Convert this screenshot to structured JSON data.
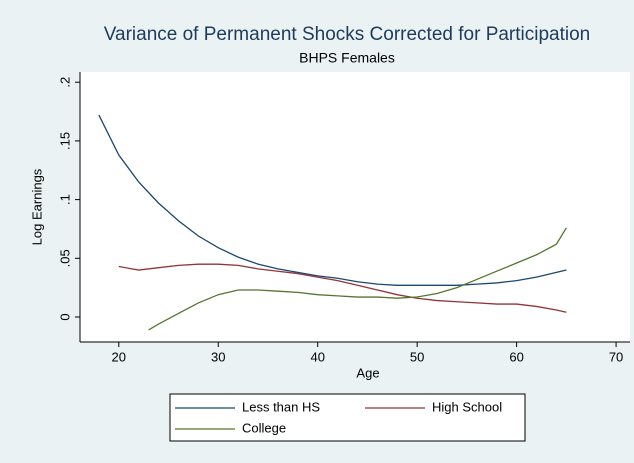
{
  "chart_data": {
    "type": "line",
    "title": "Variance of Permanent Shocks Corrected for Participation",
    "subtitle": "BHPS Females",
    "x_label": "Age",
    "y_label": "Log Earnings",
    "xlim": [
      16.1,
      71.4
    ],
    "xticks": [
      20,
      30,
      40,
      50,
      60,
      70
    ],
    "ylim": [
      -0.0213,
      0.2087
    ],
    "yticks": [
      0,
      {
        "value": 0.05,
        "label": ".05"
      },
      {
        "value": 0.1,
        "label": ".1"
      },
      {
        "value": 0.15,
        "label": ".15"
      },
      {
        "value": 0.2,
        "label": ".2"
      }
    ],
    "grid": false,
    "series": [
      {
        "name": "Less than HS",
        "color": "#1a476f",
        "x": [
          18,
          20,
          22,
          24,
          26,
          28,
          30,
          32,
          34,
          36,
          38,
          40,
          42,
          44,
          46,
          48,
          50,
          52,
          54,
          56,
          58,
          60,
          62,
          64,
          65
        ],
        "values": [
          0.172,
          0.138,
          0.115,
          0.097,
          0.082,
          0.069,
          0.059,
          0.051,
          0.045,
          0.041,
          0.038,
          0.035,
          0.033,
          0.03,
          0.028,
          0.027,
          0.027,
          0.027,
          0.027,
          0.028,
          0.029,
          0.031,
          0.034,
          0.038,
          0.04
        ]
      },
      {
        "name": "High School",
        "color": "#90353b",
        "x": [
          20,
          22,
          24,
          26,
          28,
          30,
          32,
          34,
          36,
          38,
          40,
          42,
          44,
          46,
          48,
          50,
          52,
          54,
          56,
          58,
          60,
          62,
          64,
          65
        ],
        "values": [
          0.043,
          0.04,
          0.042,
          0.044,
          0.045,
          0.045,
          0.044,
          0.041,
          0.039,
          0.037,
          0.034,
          0.031,
          0.027,
          0.023,
          0.019,
          0.016,
          0.014,
          0.013,
          0.012,
          0.011,
          0.011,
          0.009,
          0.006,
          0.004
        ]
      },
      {
        "name": "College",
        "color": "#55752f",
        "x": [
          23,
          24,
          26,
          28,
          30,
          32,
          34,
          36,
          38,
          40,
          42,
          44,
          46,
          48,
          50,
          52,
          54,
          56,
          58,
          60,
          62,
          64,
          65
        ],
        "values": [
          -0.011,
          -0.006,
          0.003,
          0.012,
          0.019,
          0.023,
          0.023,
          0.022,
          0.021,
          0.019,
          0.018,
          0.017,
          0.017,
          0.016,
          0.017,
          0.02,
          0.025,
          0.032,
          0.039,
          0.046,
          0.053,
          0.062,
          0.076
        ]
      }
    ]
  }
}
